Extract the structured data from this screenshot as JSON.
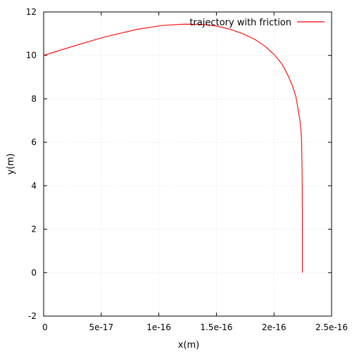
{
  "chart_data": {
    "type": "line",
    "title": "",
    "xlabel": "x(m)",
    "ylabel": "y(m)",
    "xlim": [
      0,
      2.5e-16
    ],
    "ylim": [
      -2,
      12
    ],
    "x_ticks": [
      0,
      5e-17,
      1e-16,
      1.5e-16,
      2e-16,
      2.5e-16
    ],
    "x_tick_labels": [
      "0",
      "5e-17",
      "1e-16",
      "1.5e-16",
      "2e-16",
      "2.5e-16"
    ],
    "y_ticks": [
      -2,
      0,
      2,
      4,
      6,
      8,
      10,
      12
    ],
    "y_tick_labels": [
      "-2",
      "0",
      "2",
      "4",
      "6",
      "8",
      "10",
      "12"
    ],
    "grid": true,
    "legend_position": "top-right",
    "series": [
      {
        "name": "trajectory with friction",
        "color": "#ff0000",
        "x": [
          0,
          2.6e-17,
          5.3e-17,
          8.1e-17,
          1.03e-16,
          1.22e-16,
          1.37e-16,
          1.5e-16,
          1.62e-16,
          1.73e-16,
          1.83e-16,
          1.92e-16,
          2e-16,
          2.07e-16,
          2.12e-16,
          2.16e-16,
          2.19e-16,
          2.21e-16,
          2.225e-16,
          2.235e-16,
          2.24e-16,
          2.243e-16,
          2.245e-16,
          2.246e-16,
          2.246e-16,
          2.246e-16,
          2.246e-16
        ],
        "y": [
          10.0,
          10.43,
          10.85,
          11.2,
          11.38,
          11.44,
          11.43,
          11.35,
          11.2,
          11.0,
          10.75,
          10.43,
          10.05,
          9.6,
          9.1,
          8.6,
          8.1,
          7.5,
          7.0,
          6.5,
          6.0,
          5.0,
          4.0,
          3.0,
          2.0,
          1.0,
          0.0
        ]
      }
    ]
  }
}
